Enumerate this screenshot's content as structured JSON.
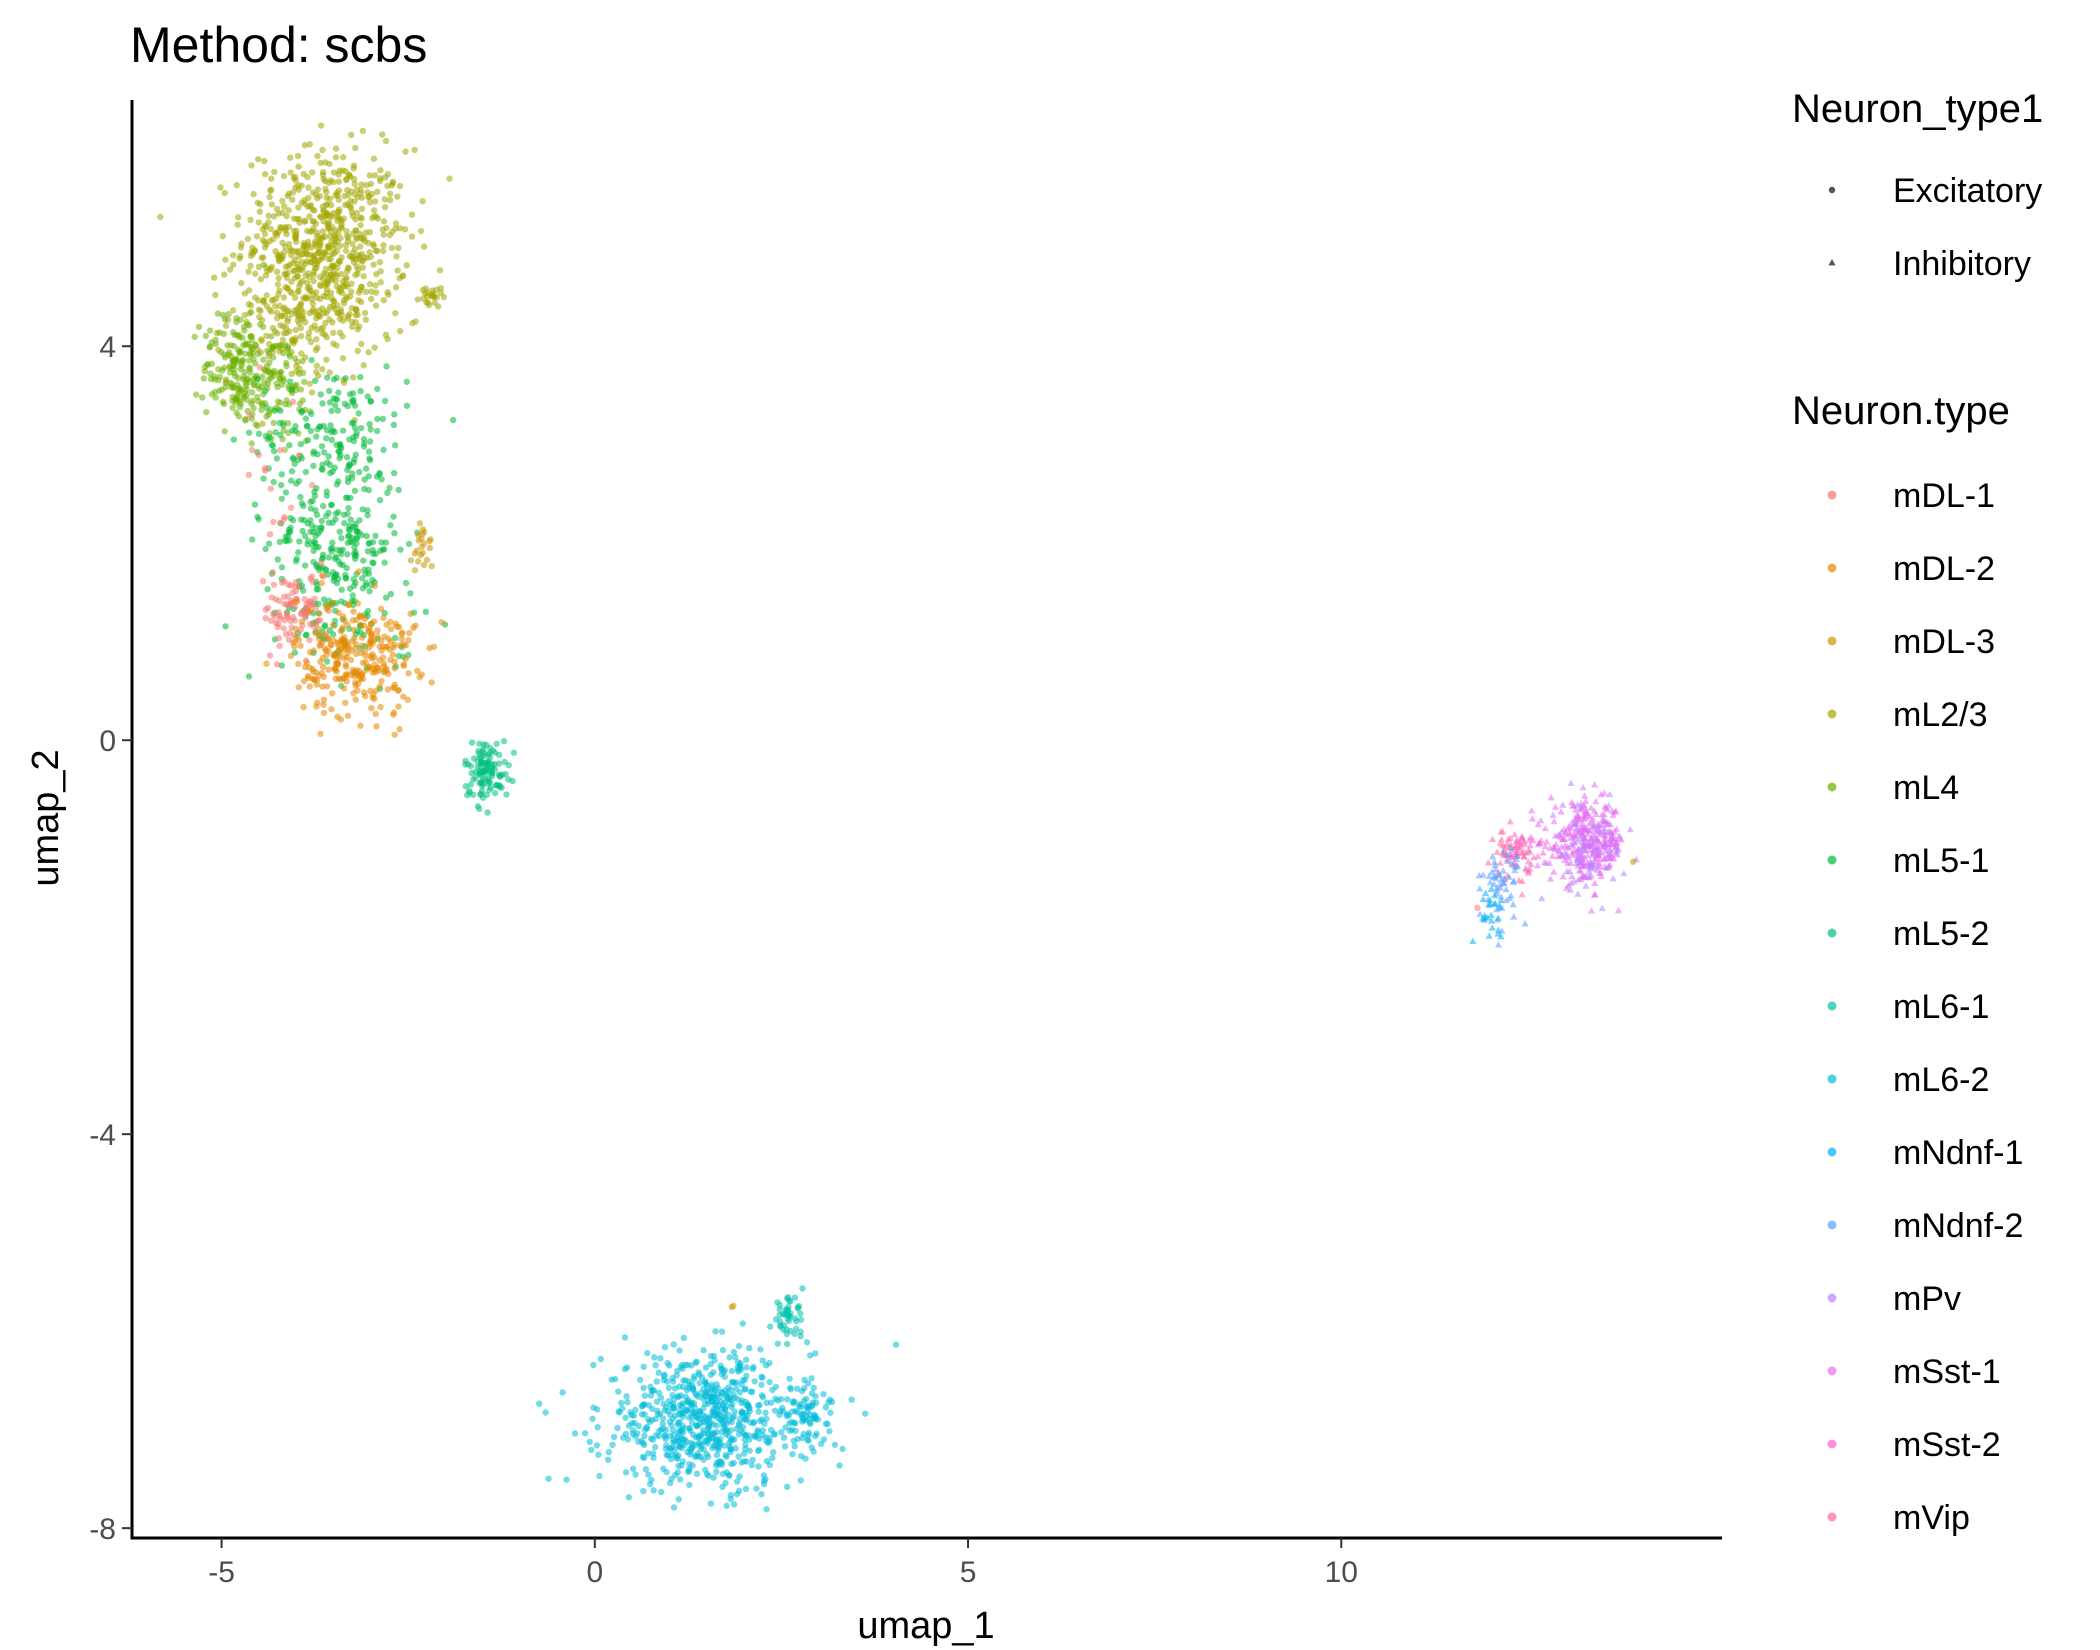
{
  "chart_data": {
    "type": "scatter",
    "title": "Method: scbs",
    "xlabel": "umap_1",
    "ylabel": "umap_2",
    "xlim": [
      -6.2,
      15.1
    ],
    "ylim": [
      -8.1,
      6.5
    ],
    "x_ticks": [
      -5,
      0,
      5,
      10
    ],
    "y_ticks": [
      -8,
      -4,
      0,
      4
    ],
    "grid": false,
    "legend_position": "right",
    "shape_legend": {
      "title": "Neuron_type1",
      "entries": [
        {
          "label": "Excitatory",
          "shape": "circle"
        },
        {
          "label": "Inhibitory",
          "shape": "triangle"
        }
      ]
    },
    "color_legend": {
      "title": "Neuron.type",
      "entries": [
        {
          "label": "mDL-1",
          "color": "#F8766D"
        },
        {
          "label": "mDL-2",
          "color": "#E58700"
        },
        {
          "label": "mDL-3",
          "color": "#C99800"
        },
        {
          "label": "mL2/3",
          "color": "#A3A500"
        },
        {
          "label": "mL4",
          "color": "#6BB100"
        },
        {
          "label": "mL5-1",
          "color": "#00BA38"
        },
        {
          "label": "mL5-2",
          "color": "#00BF7D"
        },
        {
          "label": "mL6-1",
          "color": "#00C0AF"
        },
        {
          "label": "mL6-2",
          "color": "#00BCD8"
        },
        {
          "label": "mNdnf-1",
          "color": "#00B0F6"
        },
        {
          "label": "mNdnf-2",
          "color": "#619CFF"
        },
        {
          "label": "mPv",
          "color": "#B983FF"
        },
        {
          "label": "mSst-1",
          "color": "#E76BF3"
        },
        {
          "label": "mSst-2",
          "color": "#FD61D1"
        },
        {
          "label": "mVip",
          "color": "#FF67A4"
        }
      ]
    },
    "clusters": [
      {
        "series": "mL2/3",
        "shape": "circle",
        "cx": -3.6,
        "cy": 5.1,
        "sx": 0.55,
        "sy": 0.45,
        "n": 560
      },
      {
        "series": "mL2/3",
        "shape": "circle",
        "cx": -3.9,
        "cy": 4.3,
        "sx": 0.5,
        "sy": 0.35,
        "n": 240
      },
      {
        "series": "mL2/3",
        "shape": "circle",
        "cx": -2.2,
        "cy": 4.5,
        "sx": 0.08,
        "sy": 0.06,
        "n": 22
      },
      {
        "series": "mL4",
        "shape": "circle",
        "cx": -4.8,
        "cy": 3.8,
        "sx": 0.22,
        "sy": 0.3,
        "n": 150
      },
      {
        "series": "mL4",
        "shape": "circle",
        "cx": -4.3,
        "cy": 3.6,
        "sx": 0.3,
        "sy": 0.3,
        "n": 110
      },
      {
        "series": "mL5-1",
        "shape": "circle",
        "cx": -3.5,
        "cy": 3.1,
        "sx": 0.5,
        "sy": 0.35,
        "n": 170
      },
      {
        "series": "mL5-1",
        "shape": "circle",
        "cx": -3.5,
        "cy": 2.0,
        "sx": 0.45,
        "sy": 0.4,
        "n": 230
      },
      {
        "series": "mL5-1",
        "shape": "circle",
        "cx": -3.3,
        "cy": 1.2,
        "sx": 0.45,
        "sy": 0.3,
        "n": 70
      },
      {
        "series": "mDL-1",
        "shape": "circle",
        "cx": -4.0,
        "cy": 1.3,
        "sx": 0.22,
        "sy": 0.2,
        "n": 90
      },
      {
        "series": "mDL-1",
        "shape": "circle",
        "cx": -4.3,
        "cy": 2.6,
        "sx": 0.2,
        "sy": 0.5,
        "n": 20
      },
      {
        "series": "mDL-2",
        "shape": "circle",
        "cx": -3.2,
        "cy": 0.85,
        "sx": 0.4,
        "sy": 0.3,
        "n": 290
      },
      {
        "series": "mDL-3",
        "shape": "circle",
        "cx": -2.3,
        "cy": 1.95,
        "sx": 0.07,
        "sy": 0.15,
        "n": 22
      },
      {
        "series": "mL5-2",
        "shape": "circle",
        "cx": -1.45,
        "cy": -0.3,
        "sx": 0.15,
        "sy": 0.15,
        "n": 110
      },
      {
        "series": "mL6-2",
        "shape": "circle",
        "cx": 1.5,
        "cy": -6.9,
        "sx": 0.7,
        "sy": 0.35,
        "n": 700
      },
      {
        "series": "mL6-2",
        "shape": "circle",
        "cx": 2.8,
        "cy": -6.85,
        "sx": 0.15,
        "sy": 0.12,
        "n": 60
      },
      {
        "series": "mL6-1",
        "shape": "circle",
        "cx": 2.6,
        "cy": -5.85,
        "sx": 0.1,
        "sy": 0.1,
        "n": 45
      },
      {
        "series": "mDL-3",
        "shape": "circle",
        "cx": 1.85,
        "cy": -5.75,
        "sx": 0.02,
        "sy": 0.02,
        "n": 2
      },
      {
        "series": "mSst-1",
        "shape": "triangle",
        "cx": 13.3,
        "cy": -1.05,
        "sx": 0.25,
        "sy": 0.2,
        "n": 280
      },
      {
        "series": "mPv",
        "shape": "triangle",
        "cx": 13.3,
        "cy": -1.1,
        "sx": 0.25,
        "sy": 0.22,
        "n": 90
      },
      {
        "series": "mVip",
        "shape": "triangle",
        "cx": 12.3,
        "cy": -1.15,
        "sx": 0.12,
        "sy": 0.12,
        "n": 55
      },
      {
        "series": "mSst-2",
        "shape": "triangle",
        "cx": 12.5,
        "cy": -1.1,
        "sx": 0.2,
        "sy": 0.1,
        "n": 25
      },
      {
        "series": "mNdnf-2",
        "shape": "triangle",
        "cx": 12.15,
        "cy": -1.45,
        "sx": 0.12,
        "sy": 0.2,
        "n": 55
      },
      {
        "series": "mNdnf-1",
        "shape": "triangle",
        "cx": 12.0,
        "cy": -1.75,
        "sx": 0.1,
        "sy": 0.12,
        "n": 25
      },
      {
        "series": "mDL-3",
        "shape": "circle",
        "cx": 13.9,
        "cy": -1.2,
        "sx": 0.02,
        "sy": 0.02,
        "n": 1
      },
      {
        "series": "mDL-1",
        "shape": "circle",
        "cx": 11.8,
        "cy": -1.7,
        "sx": 0.02,
        "sy": 0.02,
        "n": 1
      }
    ]
  }
}
